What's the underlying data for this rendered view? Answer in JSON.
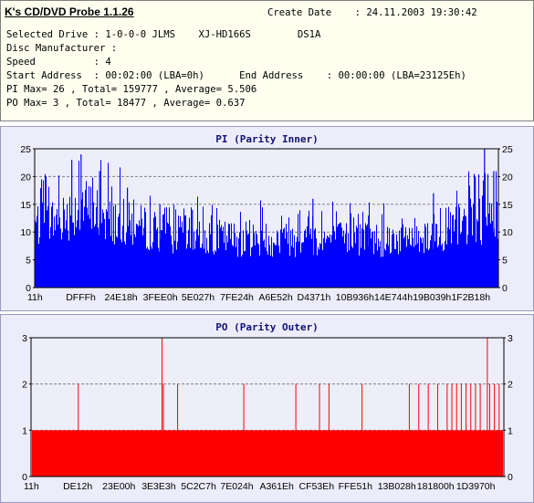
{
  "header": {
    "app_title": "K's CD/DVD Probe 1.1.26",
    "create_date": "Create Date    : 24.11.2003 19:30:42",
    "lines": [
      "Selected Drive : 1-0-0-0 JLMS    XJ-HD166S        DS1A",
      "Disc Manufacturer :",
      "Speed          : 4",
      "Start Address  : 00:02:00 (LBA=0h)      End Address    : 00:00:00 (LBA=23125Eh)",
      "PI Max= 26 , Total= 159777 , Average= 5.506",
      "PO Max= 3 , Total= 18477 , Average= 0.637"
    ]
  },
  "chart_data": [
    {
      "type": "bar",
      "title": "PI (Parity Inner)",
      "series_color": "#0000ff",
      "ylim": [
        0,
        25
      ],
      "yticks": [
        0,
        5,
        10,
        15,
        20,
        25
      ],
      "xtick_labels": [
        "11h",
        "DFFFh",
        "24E18h",
        "3FEE0h",
        "5E027h",
        "7FE24h",
        "A6E52h",
        "D4371h",
        "10B936h",
        "14E744h",
        "19B039h",
        "1F2B18h"
      ],
      "grid": true,
      "max": 26,
      "average": 5.506,
      "profile": [
        {
          "pos": 0.0,
          "level": 13
        },
        {
          "pos": 0.05,
          "level": 14
        },
        {
          "pos": 0.1,
          "level": 17
        },
        {
          "pos": 0.14,
          "level": 15
        },
        {
          "pos": 0.2,
          "level": 13
        },
        {
          "pos": 0.3,
          "level": 11
        },
        {
          "pos": 0.45,
          "level": 10
        },
        {
          "pos": 0.6,
          "level": 10
        },
        {
          "pos": 0.75,
          "level": 10
        },
        {
          "pos": 0.85,
          "level": 11
        },
        {
          "pos": 0.92,
          "level": 13
        },
        {
          "pos": 1.0,
          "level": 15
        }
      ],
      "peaks": [
        {
          "pos": 0.08,
          "value": 23
        },
        {
          "pos": 0.1,
          "value": 24
        },
        {
          "pos": 0.14,
          "value": 21
        },
        {
          "pos": 0.2,
          "value": 18
        },
        {
          "pos": 0.27,
          "value": 15
        },
        {
          "pos": 0.34,
          "value": 14
        },
        {
          "pos": 0.6,
          "value": 16
        },
        {
          "pos": 0.72,
          "value": 13
        },
        {
          "pos": 0.86,
          "value": 17
        },
        {
          "pos": 0.95,
          "value": 20
        },
        {
          "pos": 0.97,
          "value": 26
        },
        {
          "pos": 0.99,
          "value": 21
        }
      ]
    },
    {
      "type": "bar",
      "title": "PO (Parity Outer)",
      "series_color": "#ff0000",
      "ylim": [
        0,
        3
      ],
      "yticks": [
        0,
        1,
        2,
        3
      ],
      "xtick_labels": [
        "11h",
        "DE12h",
        "23E00h",
        "3E3E3h",
        "5C2C7h",
        "7E024h",
        "A361Eh",
        "CF53Eh",
        "FFE51h",
        "13B028h",
        "181800h",
        "1D3970h"
      ],
      "grid": true,
      "max": 3,
      "average": 0.637,
      "baseline": 1,
      "spikes": [
        {
          "pos": 0.1,
          "value": 2
        },
        {
          "pos": 0.277,
          "value": 3
        },
        {
          "pos": 0.28,
          "value": 2
        },
        {
          "pos": 0.31,
          "value": 2
        },
        {
          "pos": 0.45,
          "value": 2
        },
        {
          "pos": 0.56,
          "value": 2
        },
        {
          "pos": 0.61,
          "value": 2
        },
        {
          "pos": 0.63,
          "value": 2
        },
        {
          "pos": 0.7,
          "value": 2
        },
        {
          "pos": 0.8,
          "value": 2
        },
        {
          "pos": 0.82,
          "value": 2
        },
        {
          "pos": 0.84,
          "value": 2
        },
        {
          "pos": 0.86,
          "value": 2
        },
        {
          "pos": 0.88,
          "value": 2
        },
        {
          "pos": 0.89,
          "value": 2
        },
        {
          "pos": 0.9,
          "value": 2
        },
        {
          "pos": 0.91,
          "value": 2
        },
        {
          "pos": 0.92,
          "value": 2
        },
        {
          "pos": 0.93,
          "value": 2
        },
        {
          "pos": 0.94,
          "value": 2
        },
        {
          "pos": 0.95,
          "value": 2
        },
        {
          "pos": 0.965,
          "value": 3
        },
        {
          "pos": 0.97,
          "value": 2
        },
        {
          "pos": 0.98,
          "value": 2
        },
        {
          "pos": 0.99,
          "value": 2
        }
      ]
    }
  ]
}
